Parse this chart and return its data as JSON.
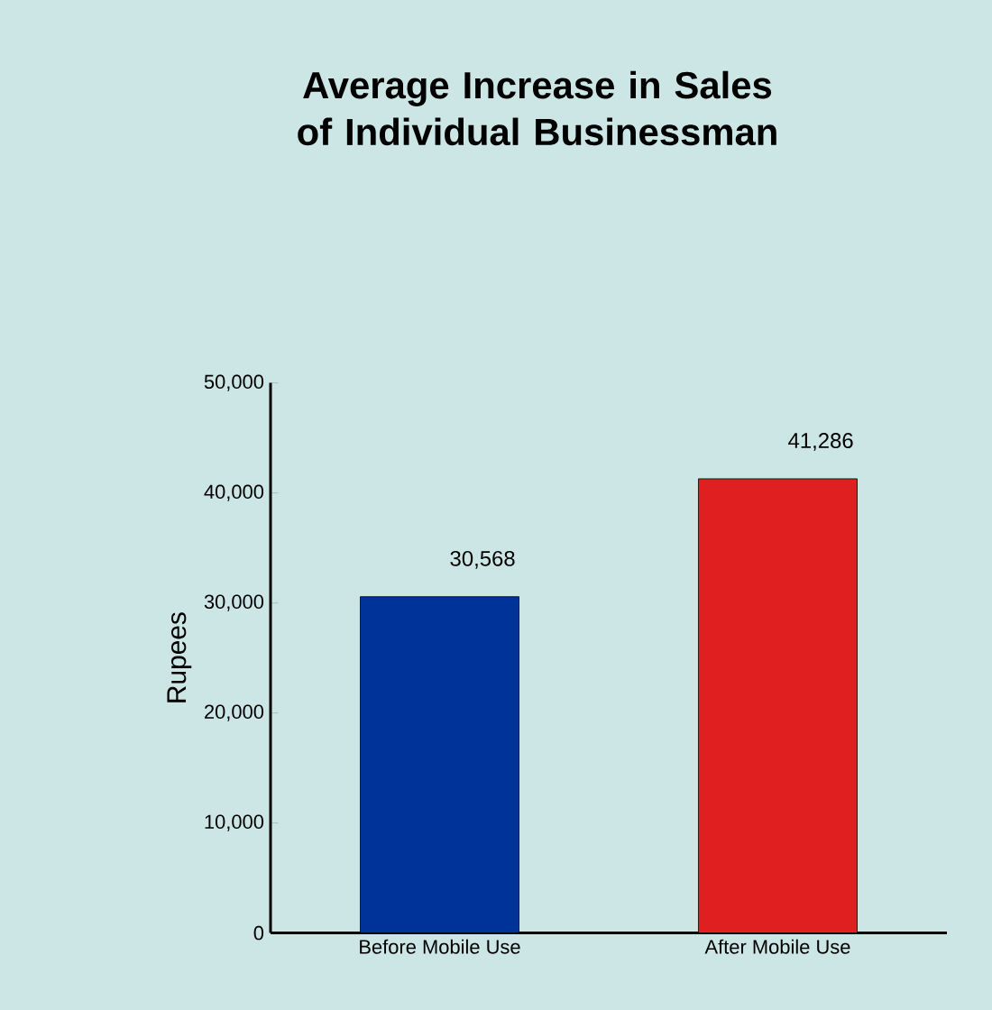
{
  "chart_data": {
    "type": "bar",
    "title": "Average Increase in Sales of Individual Businessman",
    "ylabel": "Rupees",
    "categories": [
      "Before Mobile Use",
      "After Mobile Use"
    ],
    "values": [
      30568,
      41286
    ],
    "colors": [
      "#003399",
      "#e02020"
    ],
    "value_labels": [
      "30,568",
      "41,286"
    ],
    "ylim": [
      0,
      50000
    ],
    "yticks": [
      0,
      {
        "value": 10000,
        "label": "10,000"
      },
      {
        "value": 20000,
        "label": "20,000"
      },
      {
        "value": 30000,
        "label": "30,000"
      },
      {
        "value": 40000,
        "label": "40,000"
      },
      {
        "value": 50000,
        "label": "50,000"
      }
    ],
    "grid": false
  }
}
